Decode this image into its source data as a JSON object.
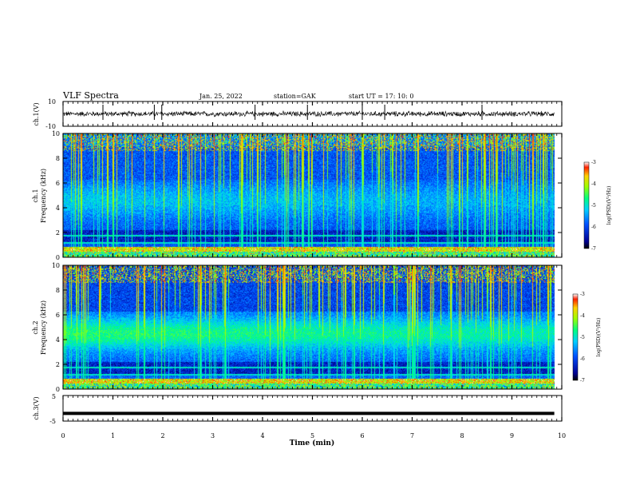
{
  "header": {
    "title": "VLF Spectra",
    "date": "Jan. 25, 2022",
    "station": "station=GAK",
    "start": "start UT =  17: 10: 0"
  },
  "chart_data": [
    {
      "type": "line",
      "panel": "ch1-waveform",
      "ylabel": "ch.1(V)",
      "ylim": [
        -10,
        10
      ],
      "y_ticks": [
        "10",
        "-10"
      ],
      "x_range_min": [
        0,
        9.85
      ],
      "baseline_v": 0,
      "approx_noise_amplitude_v": 2.5
    },
    {
      "type": "heatmap",
      "panel": "ch1-spectrogram",
      "ylabel": "ch.1\nFrequency (kHz)",
      "ylim_khz": [
        0,
        10
      ],
      "y_ticks": [
        "0",
        "2",
        "4",
        "6",
        "8",
        "10"
      ],
      "x_range_min": [
        0,
        9.85
      ],
      "colorbar": {
        "label": "log(PSD)(V²/Hz)",
        "range": [
          -7,
          -3
        ],
        "ticks": [
          "-3",
          "-4",
          "-5",
          "-6",
          "-7"
        ]
      }
    },
    {
      "type": "heatmap",
      "panel": "ch2-spectrogram",
      "ylabel": "ch.2\nFrequency (kHz)",
      "ylim_khz": [
        0,
        10
      ],
      "y_ticks": [
        "0",
        "2",
        "4",
        "6",
        "8",
        "10"
      ],
      "x_range_min": [
        0,
        9.85
      ],
      "colorbar": {
        "label": "log(PSD)(V²/Hz)",
        "range": [
          -7,
          -3
        ],
        "ticks": [
          "-3",
          "-4",
          "-5",
          "-6",
          "-7"
        ]
      }
    },
    {
      "type": "line",
      "panel": "ch3-waveform",
      "ylabel": "ch.3(V)",
      "ylim": [
        -5,
        5
      ],
      "y_ticks": [
        "5",
        "-5"
      ],
      "x_range_min": [
        0,
        9.85
      ],
      "constant_value_v": -2
    }
  ],
  "x_axis": {
    "label": "Time (min)",
    "ticks": [
      "0",
      "1",
      "2",
      "3",
      "4",
      "5",
      "6",
      "7",
      "8",
      "9",
      "10"
    ],
    "range": [
      0,
      10
    ]
  },
  "colors": {
    "spectrogram_low": "#00008b",
    "spectrogram_mid": "#00ff80",
    "spectrogram_high": "#ff0000"
  }
}
